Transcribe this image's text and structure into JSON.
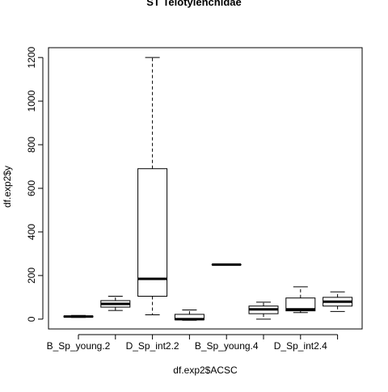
{
  "chart_data": {
    "type": "boxplot",
    "title": "ST Telotylenchidae",
    "xlabel": "df.exp2$ACSC",
    "ylabel": "df.exp2$y",
    "ylim": [
      -45,
      1245
    ],
    "yticks": [
      0,
      200,
      400,
      600,
      800,
      1000,
      1200
    ],
    "grid": false,
    "x_tick_labels": [
      "B_Sp_young.2",
      "D_Sp_int2.2",
      "B_Sp_young.4",
      "D_Sp_int2.4"
    ],
    "categories": [
      "",
      "",
      "",
      "",
      "",
      "",
      "",
      ""
    ],
    "boxes": [
      {
        "whisker_low": 8,
        "q1": 10,
        "median": 12,
        "q3": 14,
        "whisker_high": 17
      },
      {
        "whisker_low": 40,
        "q1": 55,
        "median": 70,
        "q3": 85,
        "whisker_high": 105
      },
      {
        "whisker_low": 20,
        "q1": 105,
        "median": 185,
        "q3": 690,
        "whisker_high": 1200
      },
      {
        "whisker_low": -5,
        "q1": -3,
        "median": 0,
        "q3": 22,
        "whisker_high": 42
      },
      {
        "whisker_low": 250,
        "q1": 250,
        "median": 250,
        "q3": 250,
        "whisker_high": 250
      },
      {
        "whisker_low": 0,
        "q1": 25,
        "median": 45,
        "q3": 60,
        "whisker_high": 78
      },
      {
        "whisker_low": 30,
        "q1": 38,
        "median": 45,
        "q3": 97,
        "whisker_high": 148
      },
      {
        "whisker_low": 35,
        "q1": 60,
        "median": 80,
        "q3": 100,
        "whisker_high": 125
      }
    ]
  }
}
